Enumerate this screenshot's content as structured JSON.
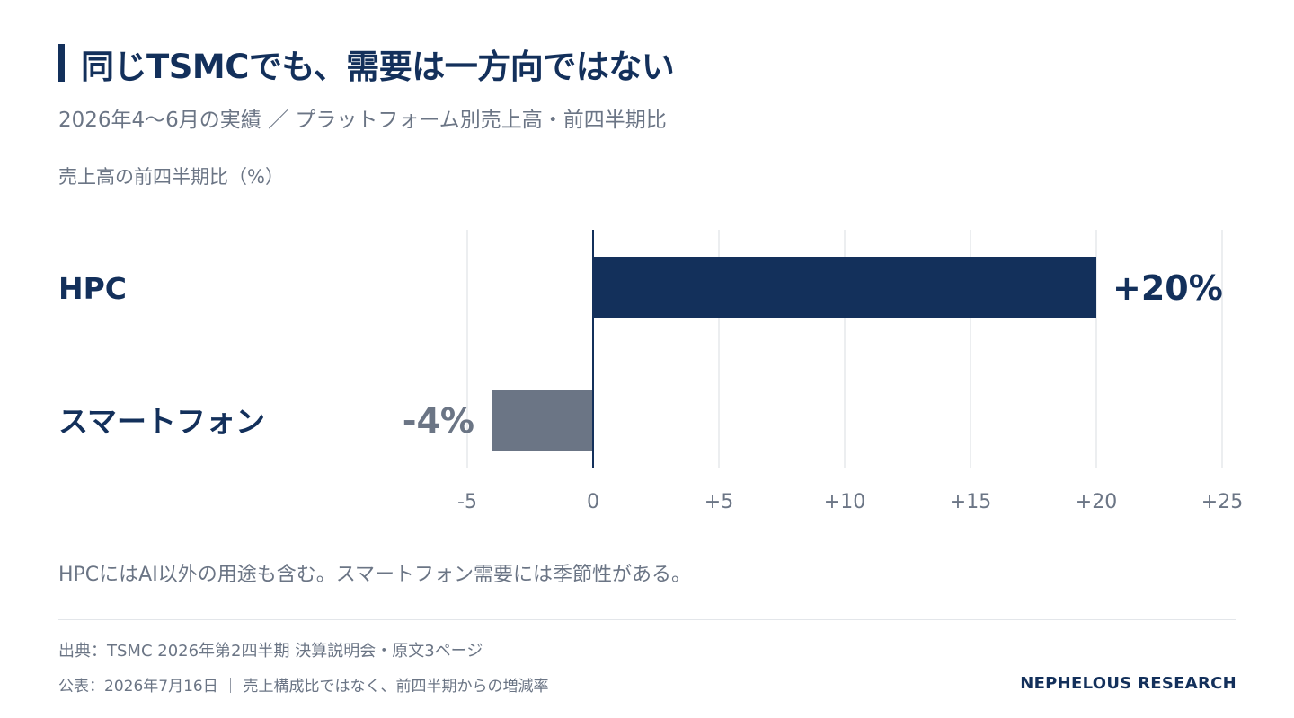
{
  "header": {
    "title": "同じTSMCでも、需要は一方向ではない",
    "subtitle": "2026年4〜6月の実績 ／ プラットフォーム別売上高・前四半期比"
  },
  "chart_data": {
    "type": "bar",
    "orientation": "horizontal",
    "ylabel": "売上高の前四半期比（%）",
    "categories": [
      "HPC",
      "スマートフォン"
    ],
    "values": [
      20,
      -4
    ],
    "data_labels": [
      "+20%",
      "-4%"
    ],
    "xlim": [
      -5,
      25
    ],
    "ticks": [
      -5,
      0,
      5,
      10,
      15,
      20,
      25
    ],
    "tick_labels": [
      "-5",
      "0",
      "+5",
      "+10",
      "+15",
      "+20",
      "+25"
    ],
    "grid": true,
    "colors": {
      "positive": "#13305b",
      "negative": "#6b7585",
      "grid": "#e6e8ec",
      "zero_line": "#13305b",
      "tick": "#6b7585"
    }
  },
  "note": "HPCにはAI以外の用途も含む。スマートフォン需要には季節性がある。",
  "footer": {
    "source": "出典：TSMC 2026年第2四半期 決算説明会・原文3ページ",
    "published": "公表：2026年7月16日 ｜ 売上構成比ではなく、前四半期からの増減率",
    "brand": "NEPHELOUS RESEARCH"
  }
}
